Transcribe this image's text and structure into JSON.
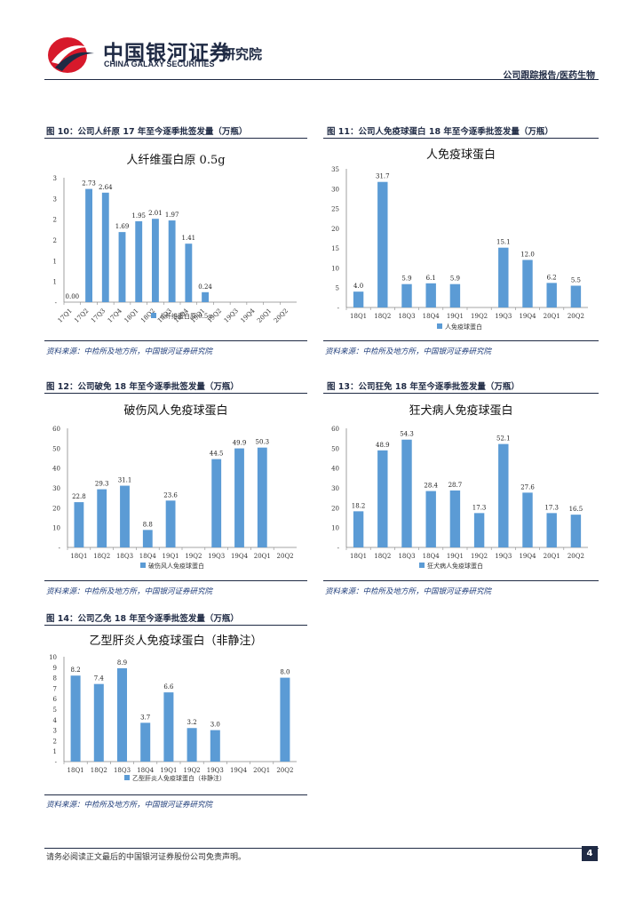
{
  "header": {
    "company_cn": "中国银河证券",
    "company_en": "CHINA GALAXY SECURITIES",
    "institute": "研究院",
    "report_type": "公司跟踪报告/医药生物"
  },
  "source_text": "资料来源：中检所及地方所，中国银河证券研究院",
  "footer": {
    "disclaimer": "请务必阅读正文最后的中国银河证券股份公司免责声明。",
    "page": "4"
  },
  "colors": {
    "bar": "#5b9bd5",
    "navy": "#1f2a44"
  },
  "figures": [
    {
      "caption": "图 10：公司人纤原 17 年至今逐季批签发量（万瓶）"
    },
    {
      "caption": "图 11：公司人免疫球蛋白 18 年至今逐季批签发量（万瓶）"
    },
    {
      "caption": "图 12：公司破免 18 年至今逐季批签发量（万瓶）"
    },
    {
      "caption": "图 13：公司狂免 18 年至今逐季批签发量（万瓶）"
    },
    {
      "caption": "图 14：公司乙免 18 年至今逐季批签发量（万瓶）"
    }
  ],
  "chart_data": [
    {
      "type": "bar",
      "title": "人纤维蛋白原 0.5g",
      "categories": [
        "17Q1",
        "17Q2",
        "17Q3",
        "17Q4",
        "18Q1",
        "18Q2",
        "18Q3",
        "18Q4",
        "19Q1",
        "19Q2",
        "19Q3",
        "19Q4",
        "20Q1",
        "20Q2"
      ],
      "values": [
        0.0,
        2.73,
        2.64,
        1.69,
        1.95,
        2.01,
        1.97,
        1.41,
        0.24,
        null,
        null,
        null,
        null,
        null
      ],
      "labels": [
        "0.00",
        "2.73",
        "2.64",
        "1.69",
        "1.95",
        "2.01",
        "1.97",
        "1.41",
        "0.24",
        "",
        "",
        "",
        "",
        ""
      ],
      "y_ticks": [
        "3",
        "3",
        "2",
        "2",
        "1",
        "1",
        "-"
      ],
      "ylim": [
        0,
        3
      ],
      "legend": "人纤维蛋白原 0.5g"
    },
    {
      "type": "bar",
      "title": "人免疫球蛋白",
      "categories": [
        "18Q1",
        "18Q2",
        "18Q3",
        "18Q4",
        "19Q1",
        "19Q2",
        "19Q3",
        "19Q4",
        "20Q1",
        "20Q2"
      ],
      "values": [
        4.0,
        31.7,
        5.9,
        6.1,
        5.9,
        null,
        15.1,
        12.0,
        6.2,
        5.5
      ],
      "labels": [
        "4.0",
        "31.7",
        "5.9",
        "6.1",
        "5.9",
        "",
        "15.1",
        "12.0",
        "6.2",
        "5.5"
      ],
      "y_ticks": [
        "35",
        "30",
        "25",
        "20",
        "15",
        "10",
        "5",
        "-"
      ],
      "ylim": [
        0,
        35
      ],
      "legend": "人免疫球蛋白"
    },
    {
      "type": "bar",
      "title": "破伤风人免疫球蛋白",
      "categories": [
        "18Q1",
        "18Q2",
        "18Q3",
        "18Q4",
        "19Q1",
        "19Q2",
        "19Q3",
        "19Q4",
        "20Q1",
        "20Q2"
      ],
      "values": [
        22.8,
        29.3,
        31.1,
        8.8,
        23.6,
        null,
        44.5,
        49.9,
        50.3,
        null
      ],
      "labels": [
        "22.8",
        "29.3",
        "31.1",
        "8.8",
        "23.6",
        "",
        "44.5",
        "49.9",
        "50.3",
        ""
      ],
      "y_ticks": [
        "60",
        "50",
        "40",
        "30",
        "20",
        "10",
        "-"
      ],
      "ylim": [
        0,
        60
      ],
      "legend": "破伤风人免疫球蛋白"
    },
    {
      "type": "bar",
      "title": "狂犬病人免疫球蛋白",
      "categories": [
        "18Q1",
        "18Q2",
        "18Q3",
        "18Q4",
        "19Q1",
        "19Q2",
        "19Q3",
        "19Q4",
        "20Q1",
        "20Q2"
      ],
      "values": [
        18.2,
        48.9,
        54.3,
        28.4,
        28.7,
        17.3,
        52.1,
        27.6,
        17.3,
        16.5
      ],
      "labels": [
        "18.2",
        "48.9",
        "54.3",
        "28.4",
        "28.7",
        "17.3",
        "52.1",
        "27.6",
        "17.3",
        "16.5"
      ],
      "y_ticks": [
        "60",
        "50",
        "40",
        "30",
        "20",
        "10",
        "-"
      ],
      "ylim": [
        0,
        60
      ],
      "legend": "狂犬病人免疫球蛋白"
    },
    {
      "type": "bar",
      "title": "乙型肝炎人免疫球蛋白（非静注）",
      "categories": [
        "18Q1",
        "18Q2",
        "18Q3",
        "18Q4",
        "19Q1",
        "19Q2",
        "19Q3",
        "19Q4",
        "20Q1",
        "20Q2"
      ],
      "values": [
        8.2,
        7.4,
        8.9,
        3.7,
        6.6,
        3.2,
        3.0,
        null,
        null,
        8.0
      ],
      "labels": [
        "8.2",
        "7.4",
        "8.9",
        "3.7",
        "6.6",
        "3.2",
        "3.0",
        "",
        "",
        "8.0"
      ],
      "y_ticks": [
        "10",
        "9",
        "8",
        "7",
        "6",
        "5",
        "4",
        "3",
        "2",
        "1",
        "-"
      ],
      "ylim": [
        0,
        10
      ],
      "legend": "乙型肝炎人免疫球蛋白（非静注）"
    }
  ]
}
